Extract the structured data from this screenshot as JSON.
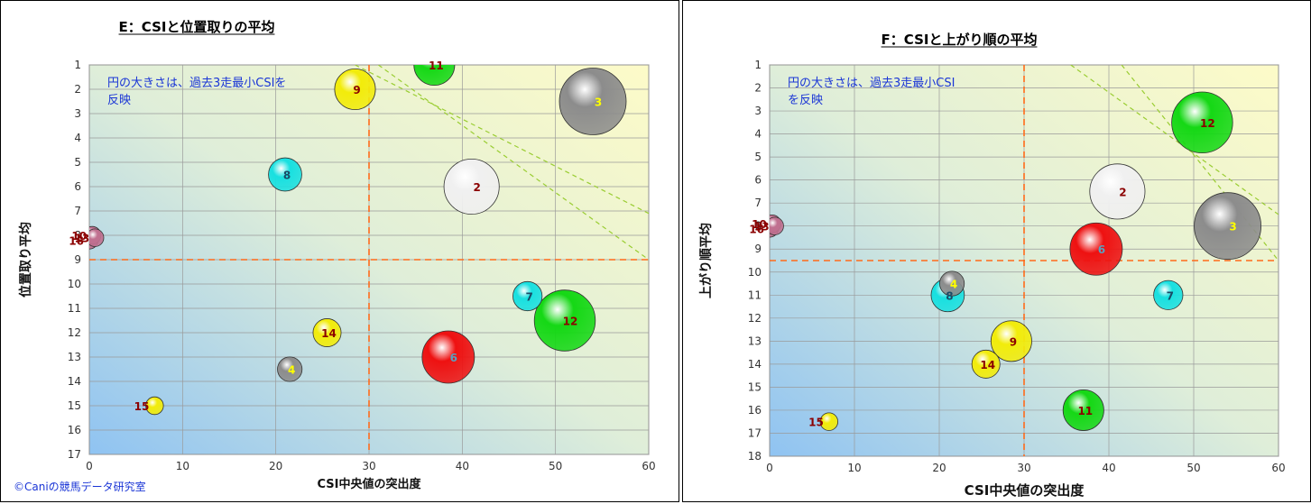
{
  "chart_data": [
    {
      "type": "bubble",
      "title": "E：CSIと位置取りの平均",
      "xlabel": "CSI中央値の突出度",
      "ylabel": "位置取り平均",
      "xlim": [
        0,
        60
      ],
      "ylim": [
        1,
        17
      ],
      "y_reversed": true,
      "xticks": [
        "0",
        "10",
        "20",
        "30",
        "40",
        "50",
        "60"
      ],
      "yticks": [
        "1",
        "2",
        "3",
        "4",
        "5",
        "6",
        "7",
        "8",
        "9",
        "10",
        "11",
        "12",
        "13",
        "14",
        "15",
        "16",
        "17"
      ],
      "note_lines": [
        "円の大きさは、過去3走最小CSIを",
        "反映"
      ],
      "grid": true,
      "ref_x": 30,
      "ref_y": 9,
      "diag_lines": [
        [
          [
            28.5,
            1
          ],
          [
            60,
            7.1
          ]
        ],
        [
          [
            31.0,
            1
          ],
          [
            60,
            9.0
          ]
        ]
      ],
      "credit": "©Caniの競馬データ研究室",
      "points": [
        {
          "label": "11",
          "x": 37,
          "y": 1,
          "size": 0.55,
          "color": "#15d815",
          "label_color": "#8b0000"
        },
        {
          "label": "9",
          "x": 28.5,
          "y": 2,
          "size": 0.55,
          "color": "#f2ec0a",
          "label_color": "#8b0000"
        },
        {
          "label": "3",
          "x": 54,
          "y": 2.5,
          "size": 1.0,
          "color": "#8c8c8c",
          "label_color": "#ffff00"
        },
        {
          "label": "8",
          "x": 21,
          "y": 5.5,
          "size": 0.42,
          "color": "#18e0e0",
          "label_color": "#1a4a66"
        },
        {
          "label": "2",
          "x": 41,
          "y": 6,
          "size": 0.8,
          "color": "#f0f0f0",
          "label_color": "#8b0000"
        },
        {
          "label": "16",
          "x": 0,
          "y": 8.2,
          "size": 0.15,
          "color": "#c07090",
          "label_color": "#8b0000"
        },
        {
          "label": "10",
          "x": 0.3,
          "y": 8.0,
          "size": 0.15,
          "color": "#c07090",
          "label_color": "#8b0000"
        },
        {
          "label": "13",
          "x": 0.6,
          "y": 8.1,
          "size": 0.15,
          "color": "#c07090",
          "label_color": "#8b0000"
        },
        {
          "label": "7",
          "x": 47,
          "y": 10.5,
          "size": 0.35,
          "color": "#18e0e0",
          "label_color": "#1a4a66"
        },
        {
          "label": "12",
          "x": 51,
          "y": 11.5,
          "size": 0.9,
          "color": "#15d815",
          "label_color": "#8b0000"
        },
        {
          "label": "14",
          "x": 25.5,
          "y": 12,
          "size": 0.33,
          "color": "#f2ec0a",
          "label_color": "#8b0000"
        },
        {
          "label": "6",
          "x": 38.5,
          "y": 13,
          "size": 0.75,
          "color": "#ee1111",
          "label_color": "#5aa0c0"
        },
        {
          "label": "4",
          "x": 21.5,
          "y": 13.5,
          "size": 0.27,
          "color": "#8c8c8c",
          "label_color": "#ffff00"
        },
        {
          "label": "15",
          "x": 7,
          "y": 15,
          "size": 0.15,
          "color": "#f2ec0a",
          "label_color": "#8b0000"
        }
      ]
    },
    {
      "type": "bubble",
      "title": "F：CSIと上がり順の平均",
      "xlabel": "CSI中央値の突出度",
      "ylabel": "上がり順平均",
      "xlim": [
        0,
        60
      ],
      "ylim": [
        1,
        18
      ],
      "y_reversed": true,
      "xticks": [
        "0",
        "10",
        "20",
        "30",
        "40",
        "50",
        "60"
      ],
      "yticks": [
        "1",
        "2",
        "3",
        "4",
        "5",
        "6",
        "7",
        "8",
        "9",
        "10",
        "11",
        "12",
        "13",
        "14",
        "15",
        "16",
        "17",
        "18"
      ],
      "note_lines": [
        "円の大きさは、過去3走最小CSI",
        "を反映"
      ],
      "grid": true,
      "ref_x": 30,
      "ref_y": 9.5,
      "diag_lines": [
        [
          [
            35.5,
            1
          ],
          [
            60,
            7.5
          ]
        ],
        [
          [
            41.5,
            1
          ],
          [
            60,
            9.5
          ]
        ]
      ],
      "points": [
        {
          "label": "12",
          "x": 51,
          "y": 3.5,
          "size": 0.9,
          "color": "#15d815",
          "label_color": "#8b0000"
        },
        {
          "label": "2",
          "x": 41,
          "y": 6.5,
          "size": 0.8,
          "color": "#f0f0f0",
          "label_color": "#8b0000"
        },
        {
          "label": "16",
          "x": 0,
          "y": 8.1,
          "size": 0.15,
          "color": "#c07090",
          "label_color": "#8b0000"
        },
        {
          "label": "10",
          "x": 0.3,
          "y": 7.9,
          "size": 0.15,
          "color": "#c07090",
          "label_color": "#8b0000"
        },
        {
          "label": "13",
          "x": 0.6,
          "y": 8.0,
          "size": 0.15,
          "color": "#c07090",
          "label_color": "#8b0000"
        },
        {
          "label": "3",
          "x": 54,
          "y": 8,
          "size": 1.0,
          "color": "#8c8c8c",
          "label_color": "#ffff00"
        },
        {
          "label": "6",
          "x": 38.5,
          "y": 9,
          "size": 0.75,
          "color": "#ee1111",
          "label_color": "#5aa0c0"
        },
        {
          "label": "4",
          "x": 21.5,
          "y": 10.5,
          "size": 0.27,
          "color": "#8c8c8c",
          "label_color": "#ffff00"
        },
        {
          "label": "8",
          "x": 21,
          "y": 11,
          "size": 0.42,
          "color": "#18e0e0",
          "label_color": "#1a4a66"
        },
        {
          "label": "7",
          "x": 47,
          "y": 11,
          "size": 0.35,
          "color": "#18e0e0",
          "label_color": "#1a4a66"
        },
        {
          "label": "9",
          "x": 28.5,
          "y": 13,
          "size": 0.55,
          "color": "#f2ec0a",
          "label_color": "#8b0000"
        },
        {
          "label": "14",
          "x": 25.5,
          "y": 14,
          "size": 0.33,
          "color": "#f2ec0a",
          "label_color": "#8b0000"
        },
        {
          "label": "11",
          "x": 37,
          "y": 16,
          "size": 0.55,
          "color": "#15d815",
          "label_color": "#8b0000"
        },
        {
          "label": "15",
          "x": 7,
          "y": 16.5,
          "size": 0.15,
          "color": "#f2ec0a",
          "label_color": "#8b0000"
        }
      ]
    }
  ]
}
